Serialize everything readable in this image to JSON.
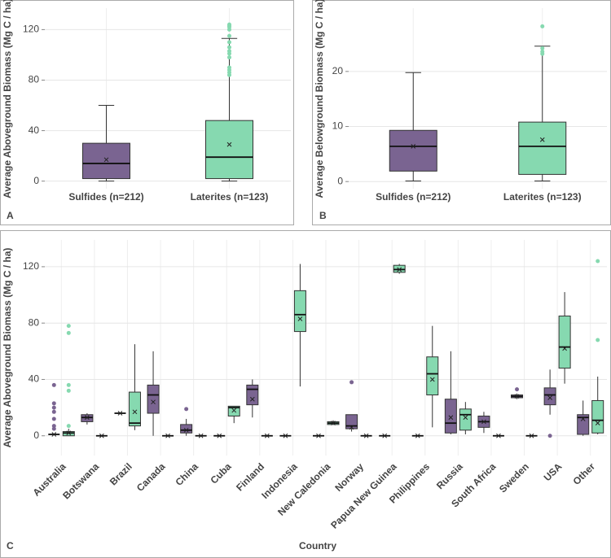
{
  "chart_data": [
    {
      "type": "box",
      "panel_label": "A",
      "y_label": "Average Aboveground Biomass (Mg C / ha)",
      "categories": [
        "Sulfides (n=212)",
        "Laterites (n=123)"
      ],
      "colors": [
        "#7a6491",
        "#86d9b0"
      ],
      "values": [
        {
          "low": 0,
          "q1": 2,
          "median": 14,
          "q3": 30,
          "high": 60,
          "mean": 17,
          "outliers": []
        },
        {
          "low": 0,
          "q1": 2,
          "median": 19,
          "q3": 48,
          "high": 113,
          "mean": 29,
          "outliers": [
            84,
            86,
            88,
            90,
            98,
            101,
            103,
            106,
            110,
            115,
            120,
            122,
            123,
            124
          ]
        }
      ],
      "ylim": [
        -6,
        137
      ],
      "yticks": [
        0,
        40,
        80,
        120
      ],
      "grid": true
    },
    {
      "type": "box",
      "panel_label": "B",
      "y_label": "Average Belowground Biomass (Mg C / ha)",
      "categories": [
        "Sulfides (n=212)",
        "Laterites (n=123)"
      ],
      "colors": [
        "#7a6491",
        "#86d9b0"
      ],
      "values": [
        {
          "low": 0.1,
          "q1": 1.9,
          "median": 6.4,
          "q3": 9.3,
          "high": 19.8,
          "mean": 6.4,
          "outliers": []
        },
        {
          "low": 0.1,
          "q1": 1.3,
          "median": 6.4,
          "q3": 10.8,
          "high": 24.6,
          "mean": 7.6,
          "outliers": [
            23.2,
            23.6,
            24.2,
            28.2
          ]
        }
      ],
      "ylim": [
        -1.3,
        31.5
      ],
      "yticks": [
        0,
        10,
        20
      ],
      "grid": true
    },
    {
      "type": "box",
      "panel_label": "C",
      "y_label": "Average Aboveground Biomass (Mg C / ha)",
      "x_label": "Country",
      "categories": [
        "Australia",
        "Botswana",
        "Brazil",
        "Canada",
        "China",
        "Cuba",
        "Finland",
        "Indonesia",
        "New Caledonia",
        "Norway",
        "Papua New Guinea",
        "Philippines",
        "Russia",
        "South Africa",
        "Sweden",
        "USA",
        "Other"
      ],
      "series": [
        {
          "color": "#7a6491",
          "values": [
            {
              "low": 1,
              "q1": 1,
              "median": 1,
              "q3": 1,
              "high": 1,
              "mean": 1,
              "outliers": [
                5,
                7,
                12,
                17,
                20,
                23,
                36
              ]
            },
            {
              "low": 8,
              "q1": 10,
              "median": 13,
              "q3": 15,
              "high": 16,
              "mean": 13,
              "outliers": []
            },
            {
              "low": 16,
              "q1": 16,
              "median": 16,
              "q3": 16,
              "high": 16,
              "mean": 16,
              "outliers": []
            },
            {
              "low": 0,
              "q1": 16,
              "median": 29,
              "q3": 36,
              "high": 60,
              "mean": 24,
              "outliers": []
            },
            {
              "low": 0,
              "q1": 2,
              "median": 4,
              "q3": 8,
              "high": 12,
              "mean": 4,
              "outliers": [
                19
              ]
            },
            {
              "low": 0,
              "q1": 0,
              "median": 0,
              "q3": 0,
              "high": 0,
              "mean": 0,
              "outliers": []
            },
            {
              "low": 13,
              "q1": 22,
              "median": 33,
              "q3": 36,
              "high": 40,
              "mean": 26,
              "outliers": []
            },
            {
              "low": 0,
              "q1": 0,
              "median": 0,
              "q3": 0,
              "high": 0,
              "mean": 0,
              "outliers": []
            },
            {
              "low": 0,
              "q1": 0,
              "median": 0,
              "q3": 0,
              "high": 0,
              "mean": 0,
              "outliers": []
            },
            {
              "low": 3,
              "q1": 5,
              "median": 7,
              "q3": 15,
              "high": 15,
              "mean": 6,
              "outliers": [
                38
              ]
            },
            {
              "low": 0,
              "q1": 0,
              "median": 0,
              "q3": 0,
              "high": 0,
              "mean": 0,
              "outliers": []
            },
            {
              "low": 0,
              "q1": 0,
              "median": 0,
              "q3": 0,
              "high": 0,
              "mean": 0,
              "outliers": []
            },
            {
              "low": 1,
              "q1": 2,
              "median": 9,
              "q3": 26,
              "high": 60,
              "mean": 13,
              "outliers": []
            },
            {
              "low": 2,
              "q1": 6,
              "median": 10,
              "q3": 14,
              "high": 17,
              "mean": 10,
              "outliers": []
            },
            {
              "low": 26,
              "q1": 27,
              "median": 28,
              "q3": 29,
              "high": 30,
              "mean": 28,
              "outliers": [
                33
              ]
            },
            {
              "low": 15,
              "q1": 22,
              "median": 29,
              "q3": 34,
              "high": 47,
              "mean": 27,
              "outliers": [
                0
              ]
            },
            {
              "low": 0,
              "q1": 1,
              "median": 13,
              "q3": 15,
              "high": 25,
              "mean": 12,
              "outliers": []
            }
          ]
        },
        {
          "color": "#86d9b0",
          "values": [
            {
              "low": 0,
              "q1": 0,
              "median": 2,
              "q3": 3,
              "high": 5,
              "mean": 2,
              "outliers": [
                7,
                32,
                36,
                73,
                78
              ]
            },
            {
              "low": 0,
              "q1": 0,
              "median": 0,
              "q3": 0,
              "high": 0,
              "mean": 0,
              "outliers": []
            },
            {
              "low": 4,
              "q1": 7,
              "median": 9,
              "q3": 31,
              "high": 65,
              "mean": 17,
              "outliers": []
            },
            {
              "low": 0,
              "q1": 0,
              "median": 0,
              "q3": 0,
              "high": 0,
              "mean": 0,
              "outliers": []
            },
            {
              "low": 0,
              "q1": 0,
              "median": 0,
              "q3": 0,
              "high": 0,
              "mean": 0,
              "outliers": []
            },
            {
              "low": 9,
              "q1": 14,
              "median": 20,
              "q3": 21,
              "high": 21,
              "mean": 18,
              "outliers": []
            },
            {
              "low": 0,
              "q1": 0,
              "median": 0,
              "q3": 0,
              "high": 0,
              "mean": 0,
              "outliers": []
            },
            {
              "low": 35,
              "q1": 74,
              "median": 86,
              "q3": 103,
              "high": 122,
              "mean": 83,
              "outliers": []
            },
            {
              "low": 8,
              "q1": 8,
              "median": 9,
              "q3": 10,
              "high": 11,
              "mean": 9,
              "outliers": []
            },
            {
              "low": 0,
              "q1": 0,
              "median": 0,
              "q3": 0,
              "high": 0,
              "mean": 0,
              "outliers": []
            },
            {
              "low": 115,
              "q1": 116,
              "median": 118,
              "q3": 121,
              "high": 122,
              "mean": 118,
              "outliers": []
            },
            {
              "low": 6,
              "q1": 29,
              "median": 44,
              "q3": 56,
              "high": 78,
              "mean": 40,
              "outliers": []
            },
            {
              "low": 1,
              "q1": 4,
              "median": 15,
              "q3": 19,
              "high": 24,
              "mean": 13,
              "outliers": []
            },
            {
              "low": 0,
              "q1": 0,
              "median": 0,
              "q3": 0,
              "high": 0,
              "mean": 0,
              "outliers": []
            },
            {
              "low": 0,
              "q1": 0,
              "median": 0,
              "q3": 0,
              "high": 0,
              "mean": 0,
              "outliers": []
            },
            {
              "low": 37,
              "q1": 48,
              "median": 63,
              "q3": 85,
              "high": 102,
              "mean": 62,
              "outliers": []
            },
            {
              "low": 1,
              "q1": 2,
              "median": 11,
              "q3": 25,
              "high": 42,
              "mean": 9,
              "outliers": [
                68,
                124
              ]
            }
          ]
        }
      ],
      "ylim": [
        -14,
        139
      ],
      "yticks": [
        0,
        40,
        80,
        120
      ],
      "grid": true
    }
  ]
}
